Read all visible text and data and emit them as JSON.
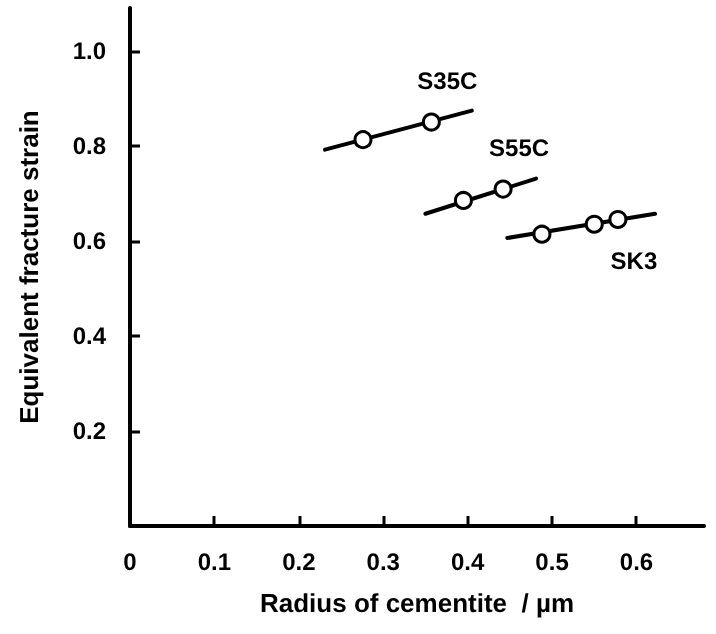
{
  "chart_data": {
    "type": "scatter",
    "xlabel": "Radius of cementite  / µm",
    "ylabel": "Equivalent fracture strain",
    "xlim": [
      0,
      0.68
    ],
    "ylim": [
      0,
      1.09
    ],
    "xticks": [
      0,
      0.1,
      0.2,
      0.3,
      0.4,
      0.5,
      0.6
    ],
    "yticks": [
      0.2,
      0.4,
      0.6,
      0.8,
      {
        "value": 1,
        "label": "1.0"
      }
    ],
    "grid": false,
    "legend": false,
    "marker": "circle",
    "series": [
      {
        "name": "S35C",
        "color": "#000000",
        "x": [
          0.276,
          0.357
        ],
        "values": [
          0.813,
          0.85
        ]
      },
      {
        "name": "S55C",
        "color": "#000000",
        "x": [
          0.395,
          0.442
        ],
        "values": [
          0.685,
          0.709
        ]
      },
      {
        "name": "SK3",
        "color": "#000000",
        "x": [
          0.488,
          0.55,
          0.578
        ],
        "values": [
          0.614,
          0.635,
          0.645
        ]
      },
      {
        "type": "line",
        "color": "#000000",
        "marker": "none",
        "x": [
          0.231,
          0.405
        ],
        "values": [
          0.792,
          0.874
        ]
      },
      {
        "type": "line",
        "color": "#000000",
        "marker": "none",
        "x": [
          0.35,
          0.481
        ],
        "values": [
          0.657,
          0.731
        ]
      },
      {
        "type": "line",
        "color": "#000000",
        "marker": "none",
        "x": [
          0.447,
          0.622
        ],
        "values": [
          0.606,
          0.657
        ]
      }
    ]
  }
}
